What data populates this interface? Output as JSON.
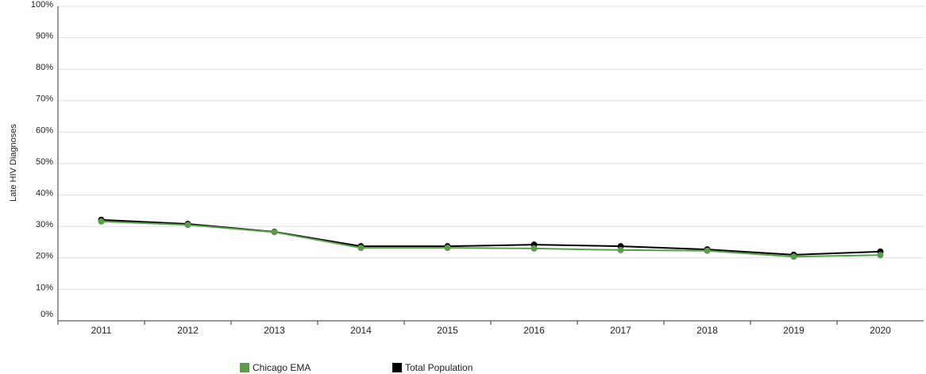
{
  "chart_data": {
    "type": "line",
    "y_label": "Late HIV Diagnoses",
    "categories": [
      "2011",
      "2012",
      "2013",
      "2014",
      "2015",
      "2016",
      "2017",
      "2018",
      "2019",
      "2020"
    ],
    "series": [
      {
        "name": "Chicago EMA",
        "color": "#5a9e4b",
        "values": [
          31.6,
          30.5,
          28.2,
          23.2,
          23.2,
          23.0,
          22.5,
          22.3,
          20.4,
          20.9
        ]
      },
      {
        "name": "Total Population",
        "color": "#000000",
        "values": [
          32.1,
          30.8,
          28.3,
          23.7,
          23.7,
          24.2,
          23.7,
          22.7,
          21.0,
          22.0
        ]
      }
    ],
    "ylim": [
      0,
      100
    ],
    "yticks": [
      {
        "value": 0,
        "label": "0%"
      },
      {
        "value": 10,
        "label": "10%"
      },
      {
        "value": 20,
        "label": "20%"
      },
      {
        "value": 30,
        "label": "30%"
      },
      {
        "value": 40,
        "label": "40%"
      },
      {
        "value": 50,
        "label": "50%"
      },
      {
        "value": 60,
        "label": "60%"
      },
      {
        "value": 70,
        "label": "70%"
      },
      {
        "value": 80,
        "label": "80%"
      },
      {
        "value": 90,
        "label": "90%"
      },
      {
        "value": 100,
        "label": "100%"
      }
    ],
    "grid": true,
    "legend": "bottom"
  }
}
